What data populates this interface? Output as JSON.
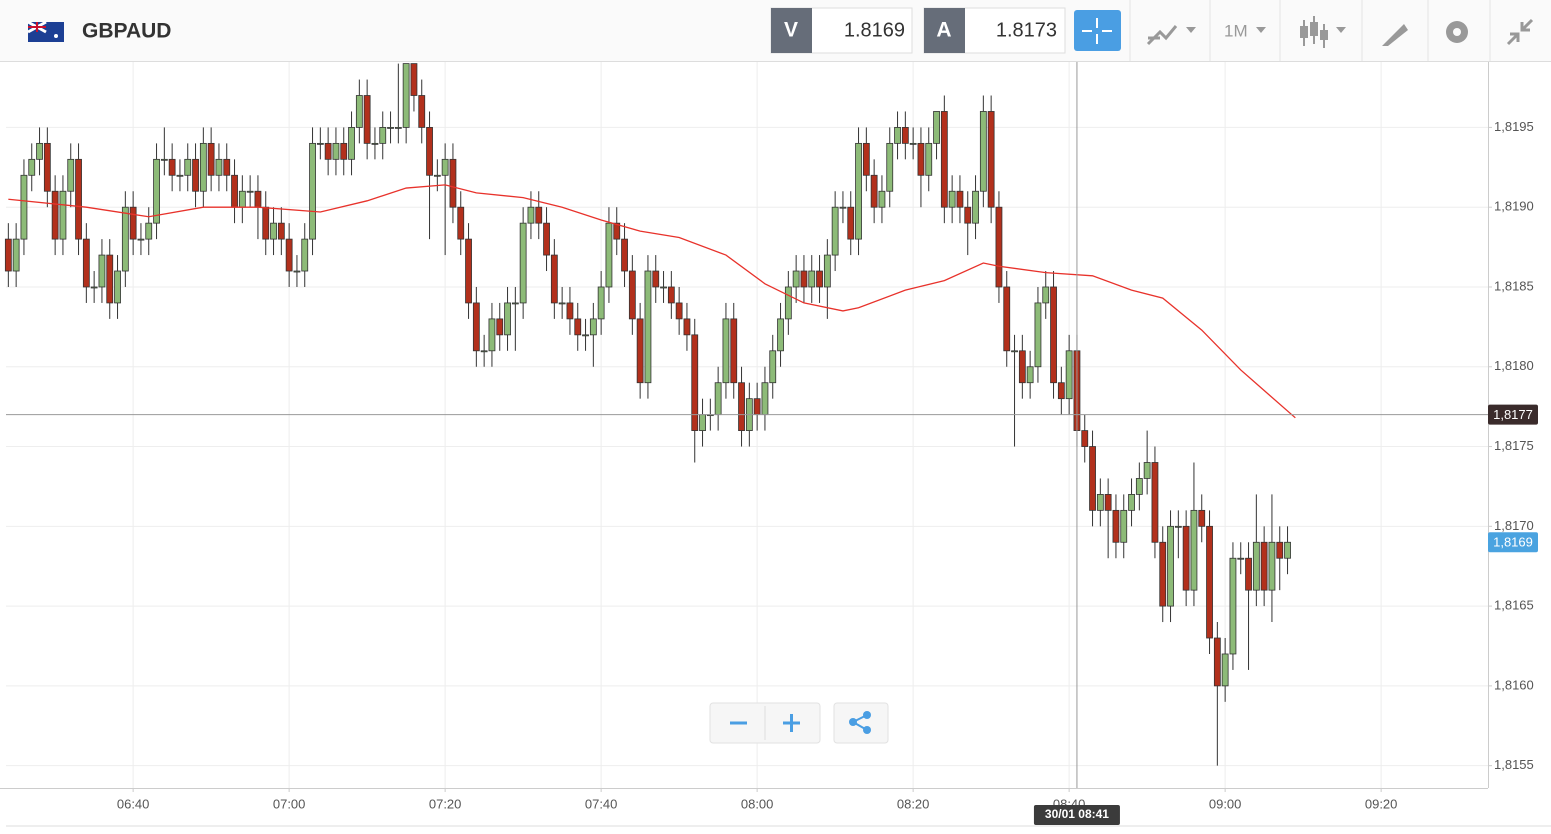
{
  "chart_data": {
    "type": "candlestick",
    "symbol": "GBPAUD",
    "bid_label": "V",
    "bid": 1.8169,
    "ask_label": "A",
    "ask": 1.8173,
    "timeframe": "1M",
    "xlim": [
      383.7,
      573.7
    ],
    "xticks": [
      {
        "value": 400,
        "label": "06:40"
      },
      {
        "value": 420,
        "label": "07:00"
      },
      {
        "value": 440,
        "label": "07:20"
      },
      {
        "value": 460,
        "label": "07:40"
      },
      {
        "value": 480,
        "label": "08:00"
      },
      {
        "value": 500,
        "label": "08:20"
      },
      {
        "value": 520,
        "label": "08:40"
      },
      {
        "value": 540,
        "label": "09:00"
      },
      {
        "value": 560,
        "label": "09:20"
      }
    ],
    "ylim": [
      1.81536,
      1.81991
    ],
    "yticks": [
      {
        "value": 1.8155,
        "label": "1,8155"
      },
      {
        "value": 1.816,
        "label": "1,8160"
      },
      {
        "value": 1.8165,
        "label": "1,8165"
      },
      {
        "value": 1.817,
        "label": "1,8170"
      },
      {
        "value": 1.8175,
        "label": "1,8175"
      },
      {
        "value": 1.818,
        "label": "1,8180"
      },
      {
        "value": 1.8185,
        "label": "1,8185"
      },
      {
        "value": 1.819,
        "label": "1,8190"
      },
      {
        "value": 1.8195,
        "label": "1,8195"
      }
    ],
    "grid": true,
    "up_color": "#8dbb78",
    "down_color": "#b2301c",
    "x": [
      384,
      385,
      386,
      387,
      388,
      389,
      390,
      391,
      392,
      393,
      394,
      395,
      396,
      397,
      398,
      399,
      400,
      401,
      402,
      403,
      404,
      405,
      406,
      407,
      408,
      409,
      410,
      411,
      412,
      413,
      414,
      415,
      416,
      417,
      418,
      419,
      420,
      421,
      422,
      423,
      424,
      425,
      426,
      427,
      428,
      429,
      430,
      431,
      432,
      433,
      434,
      435,
      436,
      437,
      438,
      439,
      440,
      441,
      442,
      443,
      444,
      445,
      446,
      447,
      448,
      449,
      450,
      451,
      452,
      453,
      454,
      455,
      456,
      457,
      458,
      459,
      460,
      461,
      462,
      463,
      464,
      465,
      466,
      467,
      468,
      469,
      470,
      471,
      472,
      473,
      474,
      475,
      476,
      477,
      478,
      479,
      480,
      481,
      482,
      483,
      484,
      485,
      486,
      487,
      488,
      489,
      490,
      491,
      492,
      493,
      494,
      495,
      496,
      497,
      498,
      499,
      500,
      501,
      502,
      503,
      504,
      505,
      506,
      507,
      508,
      509,
      510,
      511,
      512,
      513,
      514,
      515,
      516,
      517,
      518,
      519,
      520,
      521,
      522,
      523,
      524,
      525,
      526,
      527,
      528,
      529,
      530,
      531,
      532,
      533,
      534,
      535,
      536,
      537,
      538,
      539,
      540,
      541,
      542,
      543,
      544,
      545,
      546,
      547,
      548
    ],
    "open": [
      1.8188,
      1.8186,
      1.8188,
      1.8192,
      1.8193,
      1.8194,
      1.8191,
      1.8188,
      1.8191,
      1.8193,
      1.8188,
      1.8185,
      1.8185,
      1.8187,
      1.8184,
      1.8186,
      1.819,
      1.8188,
      1.8188,
      1.8189,
      1.8193,
      1.8193,
      1.8192,
      1.8192,
      1.8193,
      1.8191,
      1.8194,
      1.8192,
      1.8193,
      1.8192,
      1.819,
      1.8191,
      1.8191,
      1.819,
      1.8188,
      1.8189,
      1.8188,
      1.8186,
      1.8186,
      1.8188,
      1.8194,
      1.8194,
      1.8193,
      1.8194,
      1.8193,
      1.8195,
      1.8197,
      1.8194,
      1.8194,
      1.8195,
      1.8195,
      1.8195,
      1.8199,
      1.8197,
      1.8195,
      1.8192,
      1.8192,
      1.8193,
      1.819,
      1.8188,
      1.8184,
      1.8181,
      1.8181,
      1.8183,
      1.8182,
      1.8184,
      1.8184,
      1.8189,
      1.819,
      1.8189,
      1.8187,
      1.8184,
      1.8184,
      1.8183,
      1.8182,
      1.8182,
      1.8183,
      1.8185,
      1.8189,
      1.8188,
      1.8186,
      1.8183,
      1.8179,
      1.8186,
      1.8185,
      1.8185,
      1.8184,
      1.8183,
      1.8182,
      1.8176,
      1.8177,
      1.8177,
      1.8179,
      1.8183,
      1.8179,
      1.8176,
      1.8178,
      1.8177,
      1.8179,
      1.8181,
      1.8183,
      1.8185,
      1.8186,
      1.8185,
      1.8186,
      1.8185,
      1.8187,
      1.819,
      1.819,
      1.8188,
      1.8194,
      1.8192,
      1.819,
      1.8191,
      1.8194,
      1.8195,
      1.8194,
      1.8194,
      1.8192,
      1.8194,
      1.8196,
      1.819,
      1.8191,
      1.819,
      1.8189,
      1.8191,
      1.8196,
      1.819,
      1.8185,
      1.8181,
      1.8181,
      1.8179,
      1.818,
      1.8184,
      1.8185,
      1.8179,
      1.8178,
      1.8181,
      1.8176,
      1.8175,
      1.8171,
      1.8172,
      1.8171,
      1.8169,
      1.8171,
      1.8172,
      1.8173,
      1.8174,
      1.8169,
      1.8165,
      1.817,
      1.817,
      1.8166,
      1.8171,
      1.817,
      1.8163,
      1.816,
      1.8162,
      1.8168,
      1.8168,
      1.8166,
      1.8169,
      1.8166,
      1.8169,
      1.8168
    ],
    "high": [
      1.8189,
      1.8189,
      1.8193,
      1.8194,
      1.8195,
      1.8195,
      1.8192,
      1.8192,
      1.8194,
      1.8194,
      1.8189,
      1.8186,
      1.8188,
      1.8188,
      1.8187,
      1.8191,
      1.8191,
      1.8189,
      1.819,
      1.8194,
      1.8195,
      1.8194,
      1.8193,
      1.8194,
      1.8194,
      1.8195,
      1.8195,
      1.8194,
      1.8194,
      1.8193,
      1.8192,
      1.8192,
      1.8192,
      1.8191,
      1.819,
      1.819,
      1.8189,
      1.8187,
      1.8189,
      1.8195,
      1.8195,
      1.8195,
      1.8195,
      1.8195,
      1.8196,
      1.8198,
      1.8198,
      1.8195,
      1.8196,
      1.8196,
      1.8199,
      1.8199,
      1.8199,
      1.8198,
      1.8196,
      1.8193,
      1.8194,
      1.8194,
      1.8191,
      1.8189,
      1.8185,
      1.8182,
      1.8184,
      1.8184,
      1.8185,
      1.8185,
      1.819,
      1.8191,
      1.8191,
      1.819,
      1.8188,
      1.8185,
      1.8185,
      1.8184,
      1.8183,
      1.8184,
      1.8186,
      1.819,
      1.819,
      1.8189,
      1.8187,
      1.8184,
      1.8187,
      1.8187,
      1.8186,
      1.8186,
      1.8185,
      1.8184,
      1.8183,
      1.8178,
      1.8178,
      1.818,
      1.8184,
      1.8184,
      1.818,
      1.8179,
      1.8179,
      1.818,
      1.8182,
      1.8184,
      1.8186,
      1.8187,
      1.8187,
      1.8187,
      1.8187,
      1.8188,
      1.8191,
      1.8191,
      1.8191,
      1.8195,
      1.8195,
      1.8193,
      1.8192,
      1.8195,
      1.8196,
      1.8196,
      1.8195,
      1.8195,
      1.8195,
      1.8196,
      1.8197,
      1.8192,
      1.8192,
      1.8191,
      1.8192,
      1.8197,
      1.8197,
      1.8191,
      1.8186,
      1.8182,
      1.8182,
      1.8181,
      1.8185,
      1.8186,
      1.8186,
      1.818,
      1.8182,
      1.8182,
      1.8177,
      1.8176,
      1.8173,
      1.8173,
      1.8172,
      1.8172,
      1.8173,
      1.8174,
      1.8176,
      1.8175,
      1.817,
      1.8171,
      1.8171,
      1.8171,
      1.8174,
      1.8172,
      1.8171,
      1.8164,
      1.8163,
      1.8169,
      1.8169,
      1.8169,
      1.8172,
      1.817,
      1.8172,
      1.817,
      1.817
    ],
    "low": [
      1.8185,
      1.8185,
      1.8187,
      1.8191,
      1.8192,
      1.819,
      1.8187,
      1.8187,
      1.819,
      1.8187,
      1.8184,
      1.8184,
      1.8184,
      1.8183,
      1.8183,
      1.8185,
      1.8187,
      1.8187,
      1.8187,
      1.8188,
      1.8192,
      1.8191,
      1.8191,
      1.8191,
      1.819,
      1.819,
      1.8191,
      1.8191,
      1.8191,
      1.8189,
      1.8189,
      1.819,
      1.8188,
      1.8187,
      1.8187,
      1.8187,
      1.8185,
      1.8185,
      1.8185,
      1.8187,
      1.8193,
      1.8192,
      1.8192,
      1.8192,
      1.8192,
      1.8194,
      1.8193,
      1.8193,
      1.8193,
      1.8194,
      1.8194,
      1.8194,
      1.8196,
      1.8194,
      1.8188,
      1.8191,
      1.8187,
      1.8189,
      1.8187,
      1.8183,
      1.818,
      1.818,
      1.818,
      1.8181,
      1.8181,
      1.8181,
      1.8183,
      1.8188,
      1.8188,
      1.8186,
      1.8183,
      1.8183,
      1.8182,
      1.8181,
      1.8181,
      1.818,
      1.8182,
      1.8184,
      1.8187,
      1.8185,
      1.8182,
      1.8178,
      1.8178,
      1.8184,
      1.8184,
      1.8183,
      1.8182,
      1.8181,
      1.8174,
      1.8175,
      1.8176,
      1.8176,
      1.8178,
      1.8178,
      1.8175,
      1.8175,
      1.8176,
      1.8176,
      1.8178,
      1.818,
      1.8182,
      1.8184,
      1.8184,
      1.8184,
      1.8184,
      1.8183,
      1.8186,
      1.8189,
      1.8187,
      1.8187,
      1.8191,
      1.8189,
      1.8189,
      1.819,
      1.8193,
      1.8193,
      1.8193,
      1.819,
      1.8191,
      1.8193,
      1.8189,
      1.8189,
      1.8189,
      1.8187,
      1.8188,
      1.819,
      1.8189,
      1.8184,
      1.818,
      1.8175,
      1.8178,
      1.8178,
      1.8179,
      1.8183,
      1.8178,
      1.8177,
      1.8177,
      1.8175,
      1.8174,
      1.817,
      1.817,
      1.8168,
      1.8168,
      1.8168,
      1.817,
      1.8171,
      1.8172,
      1.8168,
      1.8164,
      1.8164,
      1.8168,
      1.8165,
      1.8165,
      1.8169,
      1.8162,
      1.8155,
      1.8159,
      1.8161,
      1.8167,
      1.8161,
      1.8165,
      1.8165,
      1.8164,
      1.8166,
      1.8167
    ],
    "close": [
      1.8186,
      1.8188,
      1.8192,
      1.8193,
      1.8194,
      1.8191,
      1.8188,
      1.8191,
      1.8193,
      1.8188,
      1.8185,
      1.8185,
      1.8187,
      1.8184,
      1.8186,
      1.819,
      1.8188,
      1.8188,
      1.8189,
      1.8193,
      1.8193,
      1.8192,
      1.8192,
      1.8193,
      1.8191,
      1.8194,
      1.8192,
      1.8193,
      1.8192,
      1.819,
      1.8191,
      1.8191,
      1.819,
      1.8188,
      1.8189,
      1.8188,
      1.8186,
      1.8186,
      1.8188,
      1.8194,
      1.8194,
      1.8193,
      1.8194,
      1.8193,
      1.8195,
      1.8197,
      1.8194,
      1.8194,
      1.8195,
      1.8195,
      1.8195,
      1.8199,
      1.8197,
      1.8195,
      1.8192,
      1.8192,
      1.8193,
      1.819,
      1.8188,
      1.8184,
      1.8181,
      1.8181,
      1.8183,
      1.8182,
      1.8184,
      1.8184,
      1.8189,
      1.819,
      1.8189,
      1.8187,
      1.8184,
      1.8184,
      1.8183,
      1.8182,
      1.8182,
      1.8183,
      1.8185,
      1.8189,
      1.8188,
      1.8186,
      1.8183,
      1.8179,
      1.8186,
      1.8185,
      1.8185,
      1.8184,
      1.8183,
      1.8182,
      1.8176,
      1.8177,
      1.8177,
      1.8179,
      1.8183,
      1.8179,
      1.8176,
      1.8178,
      1.8177,
      1.8179,
      1.8181,
      1.8183,
      1.8185,
      1.8186,
      1.8185,
      1.8186,
      1.8185,
      1.8187,
      1.819,
      1.819,
      1.8188,
      1.8194,
      1.8192,
      1.819,
      1.8191,
      1.8194,
      1.8195,
      1.8194,
      1.8194,
      1.8192,
      1.8194,
      1.8196,
      1.819,
      1.8191,
      1.819,
      1.8189,
      1.8191,
      1.8196,
      1.819,
      1.8185,
      1.8181,
      1.8181,
      1.8179,
      1.818,
      1.8184,
      1.8185,
      1.8179,
      1.8178,
      1.8181,
      1.8176,
      1.8175,
      1.8171,
      1.8172,
      1.8171,
      1.8169,
      1.8171,
      1.8172,
      1.8173,
      1.8174,
      1.8169,
      1.8165,
      1.817,
      1.817,
      1.8166,
      1.8171,
      1.817,
      1.8163,
      1.816,
      1.8162,
      1.8168,
      1.8168,
      1.8166,
      1.8169,
      1.8166,
      1.8169,
      1.8168,
      1.8169
    ],
    "moving_average": {
      "color": "#e8322b",
      "x": [
        384,
        394,
        402,
        409,
        416,
        424,
        430,
        435,
        440,
        444,
        450,
        455,
        460,
        465,
        470,
        476,
        481,
        486,
        491,
        493,
        499,
        504,
        509,
        511,
        517,
        523,
        528,
        532,
        537,
        542,
        549
      ],
      "values": [
        1.81905,
        1.819,
        1.81894,
        1.819,
        1.819,
        1.81897,
        1.81904,
        1.81912,
        1.81914,
        1.81909,
        1.81906,
        1.819,
        1.81892,
        1.81885,
        1.81881,
        1.8187,
        1.81852,
        1.8184,
        1.81835,
        1.81837,
        1.81848,
        1.81854,
        1.81865,
        1.81863,
        1.81859,
        1.81857,
        1.81848,
        1.81843,
        1.81823,
        1.81798,
        1.81768
      ]
    },
    "crosshair": {
      "price": 1.8177,
      "price_label": "1,8177",
      "time": 521,
      "time_label": "30/01 08:41"
    },
    "last_price": {
      "value": 1.8169,
      "label": "1,8169"
    }
  }
}
